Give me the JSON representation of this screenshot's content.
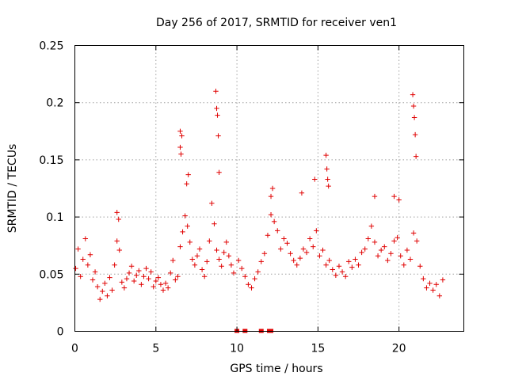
{
  "chart_data": {
    "type": "scatter",
    "title": "Day 256 of 2017, SRMTID for receiver ven1",
    "xlabel": "GPS time / hours",
    "ylabel": "SRMTID / TECUs",
    "xlim": [
      0,
      24
    ],
    "ylim": [
      0,
      0.25
    ],
    "xticks": [
      0,
      5,
      10,
      15,
      20
    ],
    "yticks": [
      0,
      0.05,
      0.1,
      0.15,
      0.2,
      0.25
    ],
    "xtick_labels": [
      "0",
      "5",
      "10",
      "15",
      "20"
    ],
    "ytick_labels": [
      "0",
      "0.05",
      "0.1",
      "0.15",
      "0.2",
      "0.25"
    ],
    "grid": true,
    "marker": "plus",
    "color": "#e00000",
    "series": [
      {
        "name": "SRMTID",
        "x": [
          0.05,
          0.2,
          0.35,
          0.5,
          0.65,
          0.8,
          0.95,
          1.1,
          1.25,
          1.4,
          1.55,
          1.7,
          1.85,
          2.0,
          2.15,
          2.3,
          2.45,
          2.6,
          2.75,
          2.9,
          3.05,
          3.2,
          3.35,
          3.5,
          3.65,
          3.8,
          3.95,
          4.1,
          4.25,
          4.4,
          4.55,
          4.7,
          4.85,
          5.0,
          5.15,
          5.3,
          5.45,
          5.6,
          5.75,
          5.9,
          6.05,
          6.2,
          6.35,
          6.5,
          6.65,
          6.8,
          6.95,
          7.1,
          7.25,
          7.4,
          7.55,
          7.7,
          7.85,
          8.0,
          8.15,
          8.3,
          8.45,
          8.6,
          8.75,
          8.9,
          9.05,
          9.2,
          9.35,
          9.5,
          9.65,
          9.8,
          10.1,
          10.3,
          10.5,
          10.7,
          10.9,
          11.1,
          11.3,
          11.5,
          11.7,
          11.9,
          12.1,
          12.3,
          12.5,
          12.7,
          12.9,
          13.1,
          13.3,
          13.5,
          13.7,
          13.9,
          14.1,
          14.3,
          14.5,
          14.7,
          14.9,
          15.1,
          15.3,
          15.5,
          15.7,
          15.9,
          16.1,
          16.3,
          16.5,
          16.7,
          16.9,
          17.1,
          17.3,
          17.5,
          17.7,
          17.9,
          18.1,
          18.3,
          18.5,
          18.7,
          18.9,
          19.1,
          19.3,
          19.5,
          19.7,
          19.9,
          20.1,
          20.3,
          20.5,
          20.7,
          20.9,
          21.1,
          21.3,
          21.5,
          21.7,
          21.9,
          22.1,
          22.3,
          22.5,
          22.7,
          6.5,
          6.5,
          6.55,
          6.6,
          6.9,
          7.0,
          8.7,
          8.75,
          8.8,
          8.85,
          8.9,
          15.5,
          15.55,
          15.6,
          15.65,
          14.8,
          20.85,
          20.9,
          20.95,
          21.0,
          21.05,
          12.1,
          12.2,
          14.0,
          18.5,
          19.7,
          20.0,
          2.6,
          2.7
        ],
        "y": [
          0.055,
          0.072,
          0.048,
          0.063,
          0.081,
          0.058,
          0.067,
          0.045,
          0.052,
          0.039,
          0.028,
          0.035,
          0.042,
          0.031,
          0.047,
          0.036,
          0.058,
          0.079,
          0.071,
          0.043,
          0.038,
          0.046,
          0.051,
          0.057,
          0.044,
          0.049,
          0.053,
          0.041,
          0.048,
          0.055,
          0.046,
          0.052,
          0.039,
          0.044,
          0.047,
          0.041,
          0.036,
          0.042,
          0.038,
          0.051,
          0.062,
          0.045,
          0.048,
          0.074,
          0.087,
          0.101,
          0.092,
          0.078,
          0.063,
          0.058,
          0.066,
          0.072,
          0.054,
          0.048,
          0.061,
          0.079,
          0.112,
          0.094,
          0.071,
          0.063,
          0.057,
          0.069,
          0.078,
          0.066,
          0.058,
          0.051,
          0.062,
          0.055,
          0.048,
          0.041,
          0.038,
          0.046,
          0.052,
          0.061,
          0.068,
          0.084,
          0.102,
          0.096,
          0.088,
          0.072,
          0.081,
          0.077,
          0.068,
          0.062,
          0.058,
          0.064,
          0.072,
          0.069,
          0.081,
          0.074,
          0.088,
          0.066,
          0.071,
          0.058,
          0.062,
          0.054,
          0.049,
          0.057,
          0.052,
          0.048,
          0.061,
          0.056,
          0.063,
          0.058,
          0.069,
          0.072,
          0.081,
          0.092,
          0.078,
          0.066,
          0.071,
          0.074,
          0.062,
          0.068,
          0.079,
          0.082,
          0.066,
          0.058,
          0.071,
          0.063,
          0.086,
          0.079,
          0.057,
          0.046,
          0.038,
          0.042,
          0.036,
          0.041,
          0.031,
          0.045,
          0.161,
          0.175,
          0.155,
          0.171,
          0.129,
          0.137,
          0.21,
          0.195,
          0.189,
          0.171,
          0.139,
          0.154,
          0.142,
          0.133,
          0.127,
          0.133,
          0.207,
          0.197,
          0.187,
          0.172,
          0.153,
          0.118,
          0.125,
          0.121,
          0.118,
          0.118,
          0.115,
          0.104,
          0.098
        ],
        "bottom_x": [
          10.0,
          10.5,
          11.5,
          12.0,
          12.1
        ]
      }
    ]
  }
}
